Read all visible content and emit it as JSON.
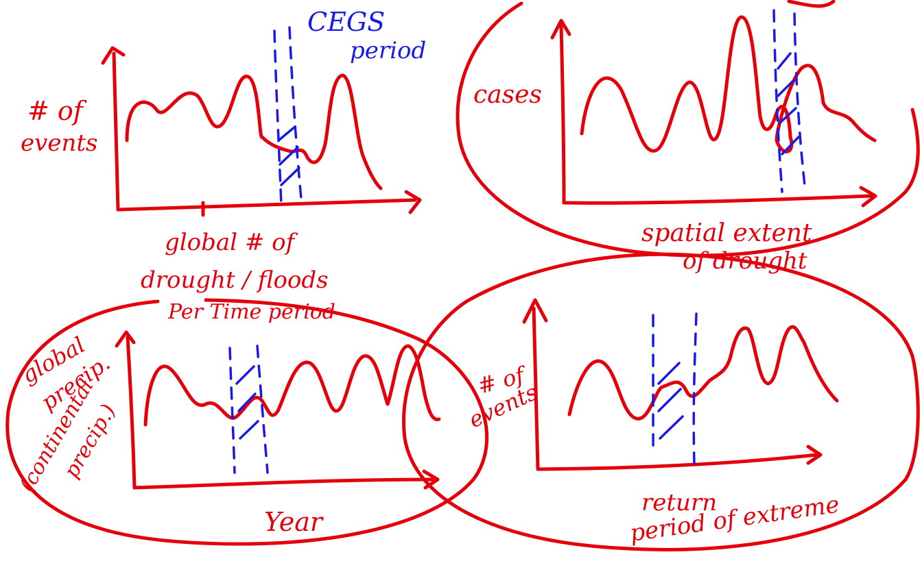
{
  "colors": {
    "ink_red": "#e4000b",
    "ink_blue": "#1a1ae6",
    "background": "#ffffff"
  },
  "panels": {
    "top_left": {
      "ylabel_line1": "# of",
      "ylabel_line2": "events",
      "xlabel_line1": "global # of",
      "xlabel_line2": "drought / floods",
      "xlabel_line3": "Per Time period",
      "band_label_line1": "CEGS",
      "band_label_line2": "period"
    },
    "top_right": {
      "ylabel": "cases",
      "xlabel_line1": "spatial extent",
      "xlabel_line2": "of drought"
    },
    "bottom_left": {
      "ylabel_line1": "global",
      "ylabel_line2": "precip.",
      "ylabel_line3": "(continental",
      "ylabel_line4": "precip.)",
      "xlabel": "Year"
    },
    "bottom_right": {
      "ylabel_line1": "# of",
      "ylabel_line2": "events",
      "xlabel_line1": "return",
      "xlabel_line2": "period of extreme"
    }
  }
}
